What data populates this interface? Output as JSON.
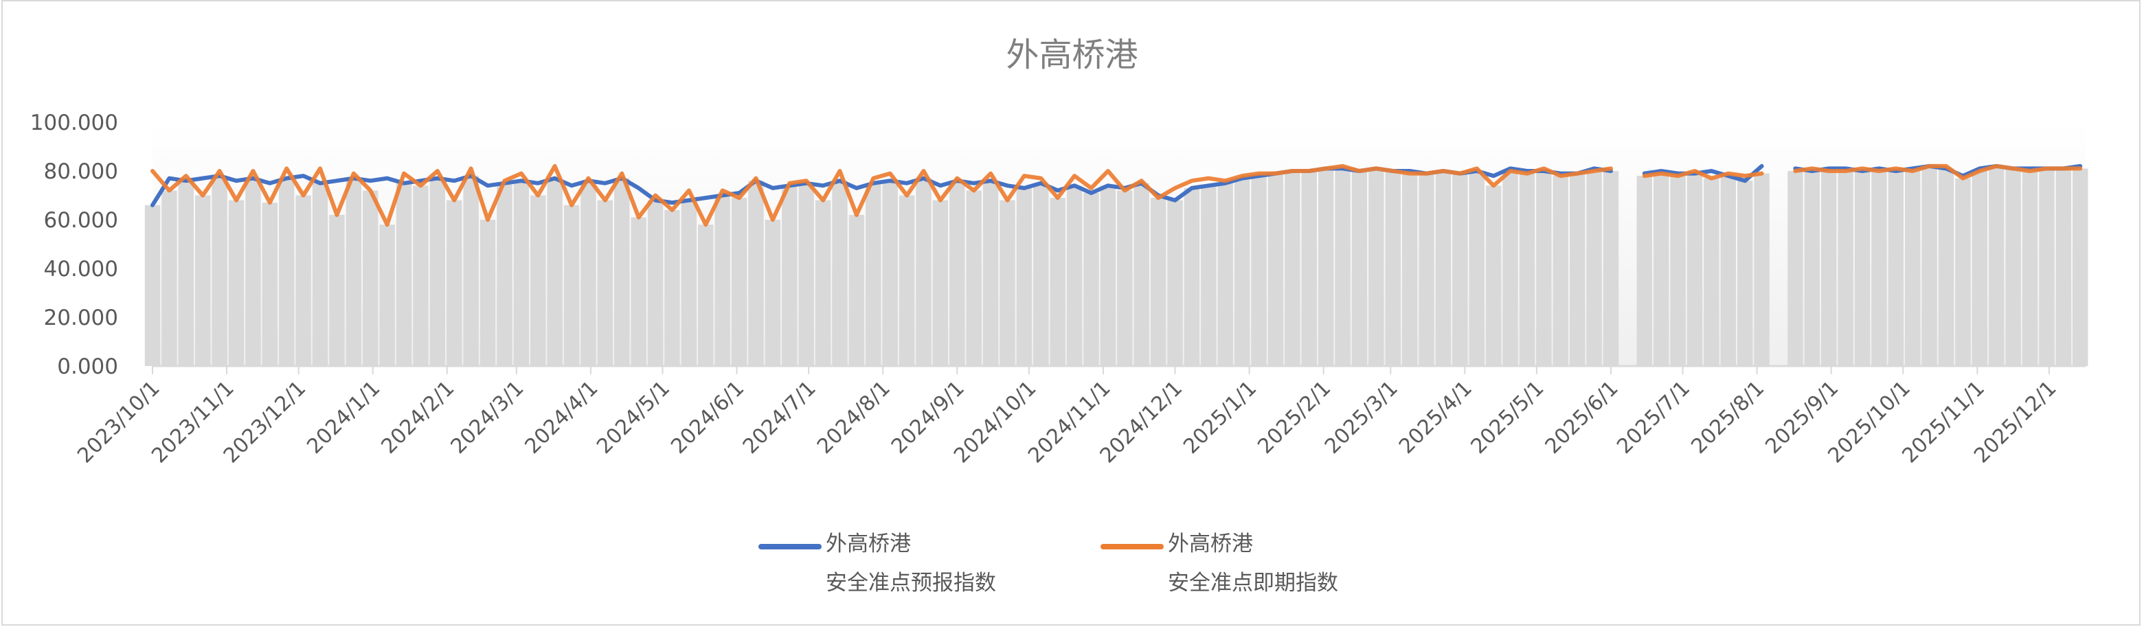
{
  "chart_data": {
    "type": "line",
    "title": "外高桥港",
    "ylim": [
      0,
      100
    ],
    "y_tick_labels": [
      "0.000",
      "20.000",
      "40.000",
      "60.000",
      "80.000",
      "100.000"
    ],
    "y_ticks": [
      0,
      20,
      40,
      60,
      80,
      100
    ],
    "x_tick_labels": [
      "2023/10/1",
      "2023/11/1",
      "2023/12/1",
      "2024/1/1",
      "2024/2/1",
      "2024/3/1",
      "2024/4/1",
      "2024/5/1",
      "2024/6/1",
      "2024/7/1",
      "2024/8/1",
      "2024/9/1",
      "2024/10/1",
      "2024/11/1",
      "2024/12/1",
      "2025/1/1",
      "2025/2/1",
      "2025/3/1",
      "2025/4/1",
      "2025/5/1",
      "2025/6/1",
      "2025/7/1",
      "2025/8/1",
      "2025/9/1",
      "2025/10/1",
      "2025/11/1",
      "2025/12/1"
    ],
    "grid": false,
    "legend_position": "bottom",
    "x": [
      "2023-10-01",
      "2023-10-08",
      "2023-10-15",
      "2023-10-22",
      "2023-10-29",
      "2023-11-05",
      "2023-11-12",
      "2023-11-19",
      "2023-11-26",
      "2023-12-03",
      "2023-12-10",
      "2023-12-17",
      "2023-12-24",
      "2023-12-31",
      "2024-01-07",
      "2024-01-14",
      "2024-01-21",
      "2024-01-28",
      "2024-02-04",
      "2024-02-11",
      "2024-02-18",
      "2024-02-25",
      "2024-03-03",
      "2024-03-10",
      "2024-03-17",
      "2024-03-24",
      "2024-03-31",
      "2024-04-07",
      "2024-04-14",
      "2024-04-21",
      "2024-04-28",
      "2024-05-05",
      "2024-05-12",
      "2024-05-19",
      "2024-05-26",
      "2024-06-02",
      "2024-06-09",
      "2024-06-16",
      "2024-06-23",
      "2024-06-30",
      "2024-07-07",
      "2024-07-14",
      "2024-07-21",
      "2024-07-28",
      "2024-08-04",
      "2024-08-11",
      "2024-08-18",
      "2024-08-25",
      "2024-09-01",
      "2024-09-08",
      "2024-09-15",
      "2024-09-22",
      "2024-09-29",
      "2024-10-06",
      "2024-10-13",
      "2024-10-20",
      "2024-10-27",
      "2024-11-03",
      "2024-11-10",
      "2024-11-17",
      "2024-11-24",
      "2024-12-01",
      "2024-12-08",
      "2024-12-15",
      "2024-12-22",
      "2024-12-29",
      "2025-01-05",
      "2025-01-12",
      "2025-01-19",
      "2025-01-26",
      "2025-02-02",
      "2025-02-09",
      "2025-02-16",
      "2025-02-23",
      "2025-03-02",
      "2025-03-09",
      "2025-03-16",
      "2025-03-23",
      "2025-03-30",
      "2025-04-06",
      "2025-04-13",
      "2025-04-20",
      "2025-04-27",
      "2025-05-04",
      "2025-05-11",
      "2025-05-18",
      "2025-05-25",
      "2025-06-01",
      "2025-06-08",
      "2025-06-15",
      "2025-06-22",
      "2025-06-29",
      "2025-07-06",
      "2025-07-13",
      "2025-07-20",
      "2025-07-27",
      "2025-08-03",
      "2025-08-10",
      "2025-08-17",
      "2025-08-24",
      "2025-08-31",
      "2025-09-07",
      "2025-09-14",
      "2025-09-21",
      "2025-09-28",
      "2025-10-05",
      "2025-10-12",
      "2025-10-19",
      "2025-10-26",
      "2025-11-02",
      "2025-11-09",
      "2025-11-16",
      "2025-11-23",
      "2025-11-30",
      "2025-12-07",
      "2025-12-14"
    ],
    "series": [
      {
        "name": "外高桥港\n安全准点预报指数",
        "name_lines": [
          "外高桥港",
          "安全准点预报指数"
        ],
        "color": "#4472C4",
        "values": [
          66,
          77,
          76,
          77,
          78,
          76,
          77,
          75,
          77,
          78,
          75,
          76,
          77,
          76,
          77,
          75,
          76,
          77,
          76,
          78,
          74,
          75,
          76,
          75,
          77,
          74,
          76,
          75,
          77,
          73,
          68,
          67,
          68,
          69,
          70,
          71,
          76,
          73,
          74,
          75,
          74,
          76,
          73,
          75,
          76,
          75,
          77,
          74,
          76,
          75,
          76,
          74,
          73,
          75,
          72,
          74,
          71,
          74,
          73,
          75,
          70,
          68,
          73,
          74,
          75,
          77,
          78,
          79,
          80,
          80,
          81,
          81,
          80,
          81,
          80,
          80,
          79,
          80,
          79,
          80,
          78,
          81,
          80,
          80,
          79,
          79,
          81,
          80,
          null,
          79,
          80,
          79,
          79,
          80,
          78,
          76,
          82,
          null,
          81,
          80,
          81,
          81,
          80,
          81,
          80,
          81,
          82,
          81,
          78,
          81,
          82,
          81,
          81,
          81,
          81,
          82
        ]
      },
      {
        "name": "外高桥港\n安全准点即期指数",
        "name_lines": [
          "外高桥港",
          "安全准点即期指数"
        ],
        "color": "#ED7D31",
        "values": [
          80,
          72,
          78,
          70,
          80,
          68,
          80,
          67,
          81,
          70,
          81,
          62,
          79,
          72,
          58,
          79,
          74,
          80,
          68,
          81,
          60,
          76,
          79,
          70,
          82,
          66,
          77,
          68,
          79,
          61,
          70,
          64,
          72,
          58,
          72,
          69,
          77,
          60,
          75,
          76,
          68,
          80,
          62,
          77,
          79,
          70,
          80,
          68,
          77,
          72,
          79,
          68,
          78,
          77,
          69,
          78,
          73,
          80,
          72,
          76,
          69,
          73,
          76,
          77,
          76,
          78,
          79,
          79,
          80,
          80,
          81,
          82,
          80,
          81,
          80,
          79,
          79,
          80,
          79,
          81,
          74,
          80,
          79,
          81,
          78,
          79,
          80,
          81,
          null,
          78,
          79,
          78,
          80,
          77,
          79,
          78,
          79,
          null,
          80,
          81,
          80,
          80,
          81,
          80,
          81,
          80,
          82,
          82,
          77,
          80,
          82,
          81,
          80,
          81,
          81,
          81
        ]
      }
    ],
    "bar_color": "#d9d9d9"
  }
}
